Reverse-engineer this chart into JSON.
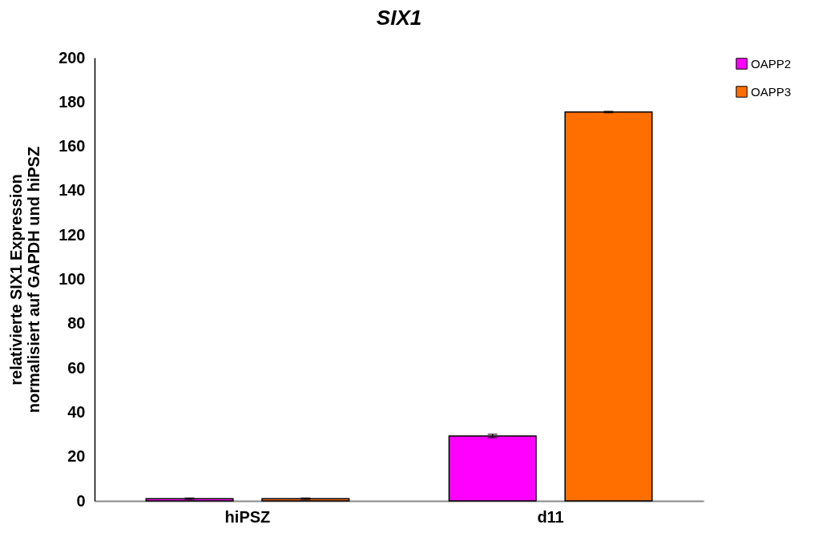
{
  "chart_data": {
    "type": "bar",
    "title": "SIX1",
    "ylabel": "relativierte SIX1 Expression normalisiert auf GAPDH und hiPSZ",
    "categories": [
      "hiPSZ",
      "d11"
    ],
    "series": [
      {
        "name": "OAPP2",
        "color": "#ff00ff",
        "values": [
          1,
          29.3
        ],
        "errors": [
          0.3,
          0.8
        ]
      },
      {
        "name": "OAPP3",
        "color": "#ff6f00",
        "values": [
          1,
          175.5
        ],
        "errors": [
          0.3,
          0.3
        ]
      }
    ],
    "ylim": [
      0,
      200
    ],
    "yticks": [
      0,
      20,
      40,
      60,
      80,
      100,
      120,
      140,
      160,
      180,
      200
    ],
    "grid": false,
    "legend": "right"
  }
}
